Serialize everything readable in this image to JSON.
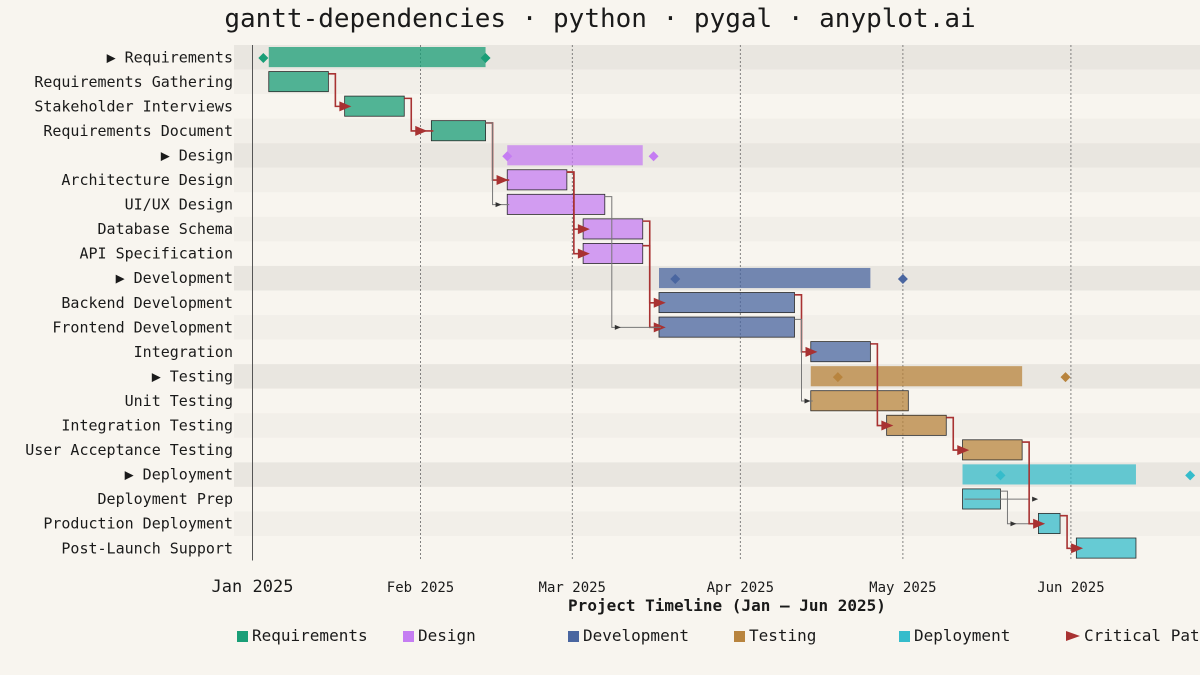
{
  "chart_data": {
    "type": "gantt",
    "title": "gantt-dependencies · python · pygal · anyplot.ai",
    "xlabel": "Project Timeline (Jan – Jun 2025)",
    "x_range": [
      "2025-01-01",
      "2025-06-25"
    ],
    "ticks": [
      {
        "date": "2025-01-01",
        "label": "Jan 2025"
      },
      {
        "date": "2025-02-01",
        "label": "Feb 2025"
      },
      {
        "date": "2025-03-01",
        "label": "Mar 2025"
      },
      {
        "date": "2025-04-01",
        "label": "Apr 2025"
      },
      {
        "date": "2025-05-01",
        "label": "May 2025"
      },
      {
        "date": "2025-06-01",
        "label": "Jun 2025"
      }
    ],
    "groups": [
      {
        "name": "Requirements",
        "color": "#1a9e77"
      },
      {
        "name": "Design",
        "color": "#c57df2"
      },
      {
        "name": "Development",
        "color": "#4a66a0"
      },
      {
        "name": "Testing",
        "color": "#b8843e"
      },
      {
        "name": "Deployment",
        "color": "#35bccb"
      }
    ],
    "critical_path_label": "Critical Path",
    "critical_color": "#a83232",
    "rows": [
      {
        "label": "▶ Requirements",
        "type": "summary",
        "group": 0,
        "start": "2025-01-04",
        "end": "2025-02-13",
        "markers": [
          "2025-01-03",
          "2025-02-13"
        ]
      },
      {
        "label": "Requirements Gathering",
        "type": "task",
        "group": 0,
        "start": "2025-01-04",
        "end": "2025-01-15"
      },
      {
        "label": "Stakeholder Interviews",
        "type": "task",
        "group": 0,
        "start": "2025-01-18",
        "end": "2025-01-29"
      },
      {
        "label": "Requirements Document",
        "type": "task",
        "group": 0,
        "start": "2025-02-03",
        "end": "2025-02-13"
      },
      {
        "label": "▶ Design",
        "type": "summary",
        "group": 1,
        "start": "2025-02-17",
        "end": "2025-03-14",
        "markers": [
          "2025-02-17",
          "2025-03-16"
        ]
      },
      {
        "label": "Architecture Design",
        "type": "task",
        "group": 1,
        "start": "2025-02-17",
        "end": "2025-02-28"
      },
      {
        "label": "UI/UX Design",
        "type": "task",
        "group": 1,
        "start": "2025-02-17",
        "end": "2025-03-07"
      },
      {
        "label": "Database Schema",
        "type": "task",
        "group": 1,
        "start": "2025-03-03",
        "end": "2025-03-14"
      },
      {
        "label": "API Specification",
        "type": "task",
        "group": 1,
        "start": "2025-03-03",
        "end": "2025-03-14"
      },
      {
        "label": "▶ Development",
        "type": "summary",
        "group": 2,
        "start": "2025-03-17",
        "end": "2025-04-25",
        "markers": [
          "2025-03-20",
          "2025-05-01"
        ]
      },
      {
        "label": "Backend Development",
        "type": "task",
        "group": 2,
        "start": "2025-03-17",
        "end": "2025-04-11"
      },
      {
        "label": "Frontend Development",
        "type": "task",
        "group": 2,
        "start": "2025-03-17",
        "end": "2025-04-11"
      },
      {
        "label": "Integration",
        "type": "task",
        "group": 2,
        "start": "2025-04-14",
        "end": "2025-04-25"
      },
      {
        "label": "▶ Testing",
        "type": "summary",
        "group": 3,
        "start": "2025-04-14",
        "end": "2025-05-23",
        "markers": [
          "2025-04-19",
          "2025-05-31"
        ]
      },
      {
        "label": "Unit Testing",
        "type": "task",
        "group": 3,
        "start": "2025-04-14",
        "end": "2025-05-02"
      },
      {
        "label": "Integration Testing",
        "type": "task",
        "group": 3,
        "start": "2025-04-28",
        "end": "2025-05-09"
      },
      {
        "label": "User Acceptance Testing",
        "type": "task",
        "group": 3,
        "start": "2025-05-12",
        "end": "2025-05-23"
      },
      {
        "label": "▶ Deployment",
        "type": "summary",
        "group": 4,
        "start": "2025-05-12",
        "end": "2025-06-13",
        "markers": [
          "2025-05-19",
          "2025-06-23"
        ]
      },
      {
        "label": "Deployment Prep",
        "type": "task",
        "group": 4,
        "start": "2025-05-12",
        "end": "2025-05-19"
      },
      {
        "label": "Production Deployment",
        "type": "task",
        "group": 4,
        "start": "2025-05-26",
        "end": "2025-05-30"
      },
      {
        "label": "Post-Launch Support",
        "type": "task",
        "group": 4,
        "start": "2025-06-02",
        "end": "2025-06-13"
      }
    ],
    "dependencies": [
      {
        "from": 1,
        "to": 2,
        "critical": true
      },
      {
        "from": 2,
        "to": 3,
        "critical": true
      },
      {
        "from": 3,
        "to": 5,
        "critical": true
      },
      {
        "from": 3,
        "to": 6,
        "critical": false
      },
      {
        "from": 5,
        "to": 7,
        "critical": true
      },
      {
        "from": 5,
        "to": 8,
        "critical": true
      },
      {
        "from": 7,
        "to": 10,
        "critical": true
      },
      {
        "from": 8,
        "to": 11,
        "critical": true
      },
      {
        "from": 6,
        "to": 11,
        "critical": false
      },
      {
        "from": 10,
        "to": 12,
        "critical": true
      },
      {
        "from": 11,
        "to": 14,
        "critical": false
      },
      {
        "from": 12,
        "to": 15,
        "critical": true
      },
      {
        "from": 15,
        "to": 16,
        "critical": true
      },
      {
        "from": 16,
        "to": 18,
        "critical": false
      },
      {
        "from": 18,
        "to": 19,
        "critical": false
      },
      {
        "from": 16,
        "to": 19,
        "critical": true
      },
      {
        "from": 19,
        "to": 20,
        "critical": true
      }
    ]
  }
}
